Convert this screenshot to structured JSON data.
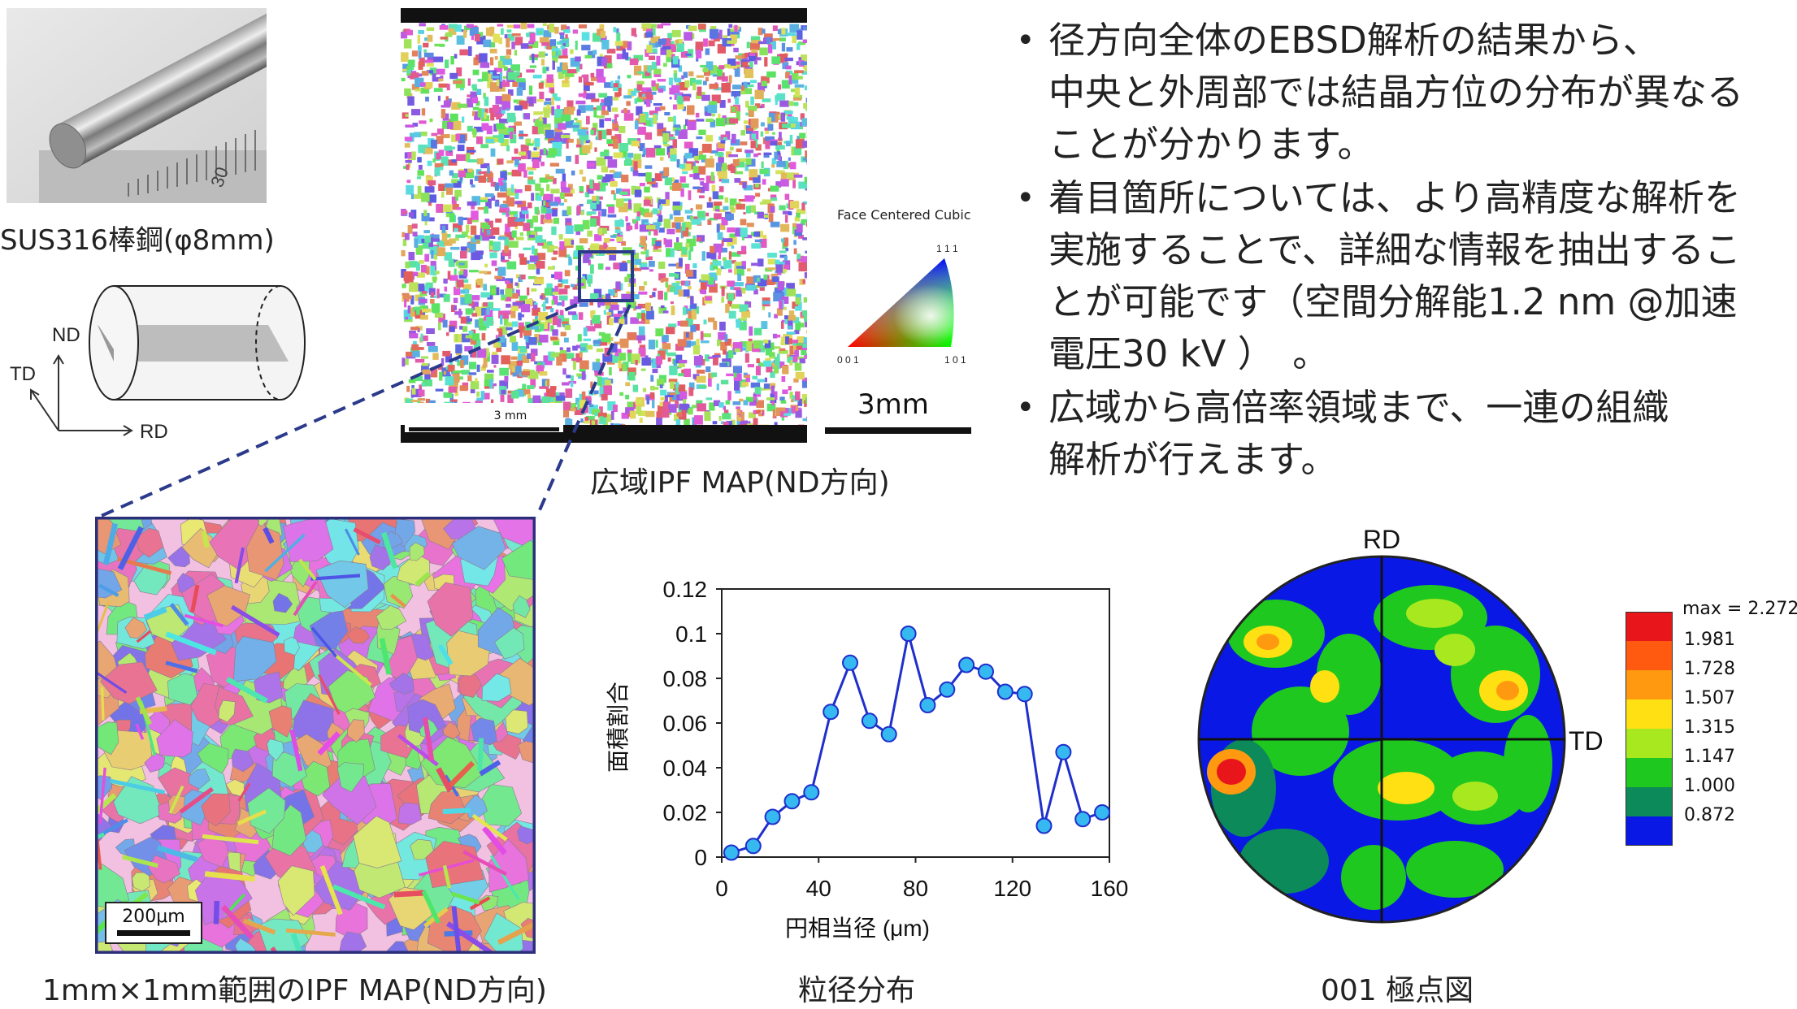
{
  "rod_photo": {
    "ruler_mark": "30"
  },
  "rod_caption": "SUS316棒鋼(φ8mm)",
  "axes": {
    "nd": "ND",
    "td": "TD",
    "rd": "RD"
  },
  "wide_map": {
    "scale_label": "3 mm",
    "caption": "広域IPF MAP(ND方向)"
  },
  "ipf_key": {
    "title": "Face Centered Cubic",
    "v111": "1 1 1",
    "v001": "0 0 1",
    "v101": "1 0 1",
    "scale_label": "3mm"
  },
  "bullets": [
    [
      "径方向全体のEBSD解析の結果から、",
      "中央と外周部では結晶方位の分布が異なる",
      "ことが分かります。"
    ],
    [
      "着目箇所については、より高精度な解析を",
      "実施することで、詳細な情報を抽出するこ",
      "とが可能です（空間分解能1.2 nm @加速",
      "電圧30 kV ）　。"
    ],
    [
      "広域から高倍率領域まで、一連の組織",
      "解析が行えます。"
    ]
  ],
  "zoom_map": {
    "scale_label": "200μm",
    "caption": "1mm×1mm範囲のIPF MAP(ND方向)"
  },
  "chart_caption": "粒径分布",
  "chart_data": {
    "type": "line",
    "xlabel": "円相当径 (μm)",
    "ylabel": "面積割合",
    "xlim": [
      0,
      160
    ],
    "ylim": [
      0,
      0.12
    ],
    "xticks": [
      0,
      40,
      80,
      120,
      160
    ],
    "yticks": [
      0,
      0.02,
      0.04,
      0.06,
      0.08,
      0.1,
      0.12
    ],
    "ytick_labels": [
      "0",
      "0.02",
      "0.04",
      "0.06",
      "0.08",
      "0.1",
      "0.12"
    ],
    "x": [
      4,
      13,
      21,
      29,
      37,
      45,
      53,
      61,
      69,
      77,
      85,
      93,
      101,
      109,
      117,
      125,
      133,
      141,
      149,
      157
    ],
    "y": [
      0.002,
      0.005,
      0.018,
      0.025,
      0.029,
      0.065,
      0.087,
      0.061,
      0.055,
      0.1,
      0.068,
      0.075,
      0.086,
      0.083,
      0.074,
      0.073,
      0.014,
      0.047,
      0.017,
      0.02
    ],
    "color": "#1f2fcc",
    "marker_color": "#36b8f0",
    "grid": false
  },
  "pole_figure": {
    "top_label": "RD",
    "right_label": "TD",
    "caption": "001 極点図",
    "legend_max": "max = 2.272",
    "legend_levels": [
      {
        "label": "1.981",
        "color": "#e8161b"
      },
      {
        "label": "1.728",
        "color": "#ff5a10"
      },
      {
        "label": "1.507",
        "color": "#ff9a10"
      },
      {
        "label": "1.315",
        "color": "#ffe012"
      },
      {
        "label": "1.147",
        "color": "#a8e81e"
      },
      {
        "label": "1.000",
        "color": "#1fc81f"
      },
      {
        "label": "0.872",
        "color": "#0c8a5a"
      },
      {
        "label": "",
        "color": "#0a18e6"
      }
    ]
  }
}
